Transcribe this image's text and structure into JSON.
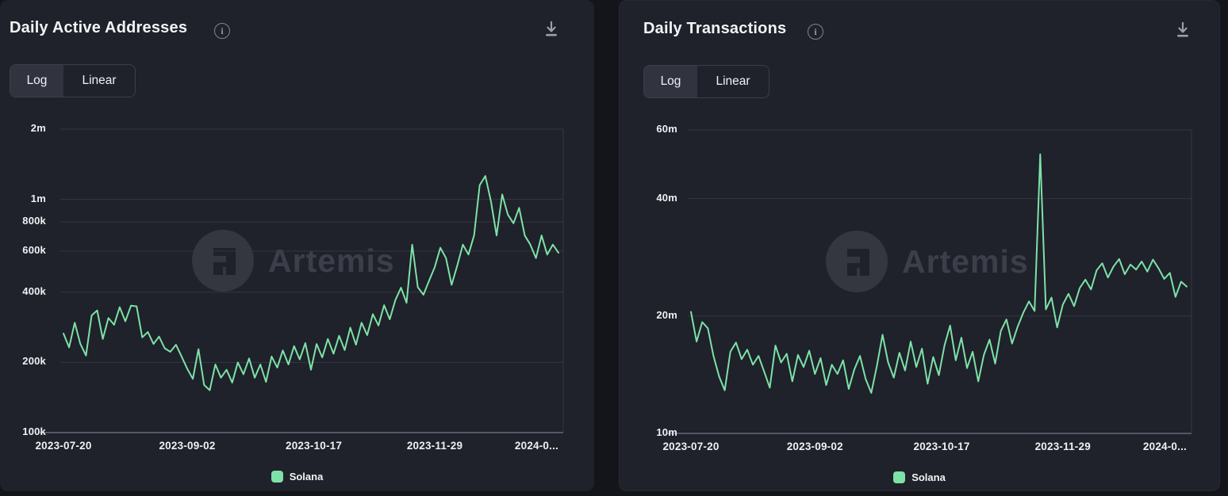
{
  "watermark": "Artemis",
  "colors": {
    "series_green": "#7de2a6",
    "panel_bg": "#1f212b",
    "grid": "#343742",
    "axis_line": "#545866"
  },
  "panels": [
    {
      "title": "Daily Active Addresses",
      "info_glyph": "i",
      "toggle": {
        "log_label": "Log",
        "linear_label": "Linear",
        "selected": "Log"
      },
      "legend": [
        {
          "label": "Solana",
          "color": "#7de2a6"
        }
      ]
    },
    {
      "title": "Daily Transactions",
      "info_glyph": "i",
      "toggle": {
        "log_label": "Log",
        "linear_label": "Linear",
        "selected": "Log"
      },
      "legend": [
        {
          "label": "Solana",
          "color": "#7de2a6"
        }
      ]
    }
  ],
  "chart_data": [
    {
      "type": "line",
      "title": "Daily Active Addresses",
      "scale": "log",
      "unit": "thousands",
      "x_start": "2023-07-20",
      "x_step_days": 2,
      "x_total_days": 176,
      "x_ticks": [
        {
          "day": 0,
          "label": "2023-07-20"
        },
        {
          "day": 44,
          "label": "2023-09-02"
        },
        {
          "day": 89,
          "label": "2023-10-17"
        },
        {
          "day": 132,
          "label": "2023-11-29"
        },
        {
          "day": 176,
          "label": "2024-0..."
        }
      ],
      "ylim": [
        100,
        2000
      ],
      "y_ticks": [
        {
          "value": 2000,
          "label": "2m"
        },
        {
          "value": 1000,
          "label": "1m"
        },
        {
          "value": 800,
          "label": "800k"
        },
        {
          "value": 600,
          "label": "600k"
        },
        {
          "value": 400,
          "label": "400k"
        },
        {
          "value": 200,
          "label": "200k"
        },
        {
          "value": 100,
          "label": "100k"
        }
      ],
      "legend_position": "bottom",
      "grid": true,
      "series": [
        {
          "name": "Solana",
          "color": "#7de2a6",
          "values": [
            266,
            232,
            296,
            240,
            214,
            318,
            334,
            252,
            310,
            290,
            345,
            300,
            350,
            348,
            256,
            270,
            240,
            258,
            230,
            222,
            238,
            212,
            188,
            170,
            228,
            160,
            152,
            196,
            172,
            186,
            164,
            200,
            178,
            208,
            172,
            196,
            165,
            212,
            190,
            225,
            196,
            235,
            206,
            242,
            186,
            240,
            210,
            252,
            218,
            260,
            226,
            282,
            238,
            296,
            262,
            322,
            288,
            352,
            306,
            370,
            418,
            360,
            640,
            420,
            390,
            448,
            512,
            620,
            560,
            430,
            520,
            640,
            580,
            700,
            1150,
            1260,
            980,
            700,
            1050,
            860,
            790,
            920,
            700,
            640,
            560,
            700,
            580,
            640,
            590
          ]
        }
      ]
    },
    {
      "type": "line",
      "title": "Daily Transactions",
      "scale": "log",
      "unit": "millions",
      "x_start": "2023-07-20",
      "x_step_days": 2,
      "x_total_days": 176,
      "x_ticks": [
        {
          "day": 0,
          "label": "2023-07-20"
        },
        {
          "day": 44,
          "label": "2023-09-02"
        },
        {
          "day": 89,
          "label": "2023-10-17"
        },
        {
          "day": 132,
          "label": "2023-11-29"
        },
        {
          "day": 176,
          "label": "2024-0..."
        }
      ],
      "ylim": [
        10,
        60
      ],
      "y_ticks": [
        {
          "value": 60,
          "label": "60m"
        },
        {
          "value": 40,
          "label": "40m"
        },
        {
          "value": 20,
          "label": "20m"
        },
        {
          "value": 10,
          "label": "10m"
        }
      ],
      "legend_position": "bottom",
      "grid": true,
      "series": [
        {
          "name": "Solana",
          "color": "#7de2a6",
          "values": [
            20.5,
            17.2,
            19.3,
            18.6,
            15.8,
            14.0,
            12.9,
            16.2,
            17.1,
            15.5,
            16.4,
            15.0,
            15.8,
            14.4,
            13.1,
            16.8,
            15.2,
            16.0,
            13.6,
            15.9,
            14.8,
            16.3,
            14.2,
            15.6,
            13.3,
            15.0,
            14.2,
            15.4,
            13.0,
            14.6,
            15.8,
            13.8,
            12.7,
            14.9,
            17.9,
            15.2,
            13.9,
            16.1,
            14.5,
            17.2,
            14.8,
            16.5,
            13.4,
            15.7,
            14.1,
            16.8,
            18.9,
            15.4,
            17.6,
            14.7,
            16.2,
            13.6,
            15.9,
            17.4,
            15.1,
            18.3,
            19.6,
            17.0,
            18.8,
            20.4,
            21.8,
            20.6,
            52.0,
            20.8,
            22.3,
            18.7,
            21.4,
            22.8,
            21.2,
            23.6,
            24.8,
            23.4,
            26.2,
            27.3,
            25.1,
            26.8,
            28.0,
            25.6,
            27.1,
            26.3,
            27.6,
            26.0,
            27.9,
            26.5,
            24.9,
            25.8,
            22.4,
            24.5,
            23.8
          ]
        }
      ]
    }
  ]
}
